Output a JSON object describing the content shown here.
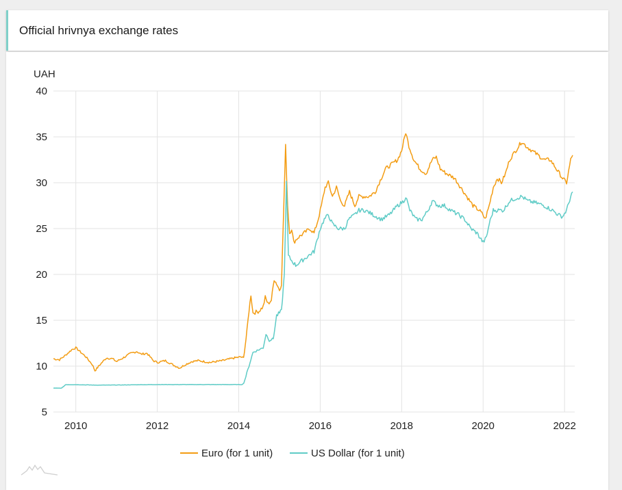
{
  "header": {
    "title": "Official hrivnya exchange rates"
  },
  "chart_data": {
    "type": "line",
    "title": "Official hrivnya exchange rates",
    "ylabel": "UAH",
    "xlabel": "",
    "xlim": [
      2009.45,
      2022.25
    ],
    "ylim": [
      5,
      40
    ],
    "x_ticks": [
      "2010",
      "2012",
      "2014",
      "2016",
      "2018",
      "2020",
      "2022"
    ],
    "y_ticks": [
      "40",
      "35",
      "30",
      "25",
      "20",
      "15",
      "10",
      "5"
    ],
    "grid": true,
    "legend_position": "bottom-center",
    "series": [
      {
        "name": "Euro (for 1 unit)",
        "color": "#f39c12",
        "points": [
          [
            2009.45,
            10.8
          ],
          [
            2009.6,
            10.7
          ],
          [
            2009.75,
            11.2
          ],
          [
            2009.9,
            11.8
          ],
          [
            2010.0,
            12.0
          ],
          [
            2010.1,
            11.6
          ],
          [
            2010.25,
            11.0
          ],
          [
            2010.4,
            10.2
          ],
          [
            2010.47,
            9.5
          ],
          [
            2010.6,
            10.2
          ],
          [
            2010.75,
            10.9
          ],
          [
            2010.9,
            10.8
          ],
          [
            2011.0,
            10.5
          ],
          [
            2011.2,
            11.0
          ],
          [
            2011.35,
            11.4
          ],
          [
            2011.5,
            11.6
          ],
          [
            2011.6,
            11.3
          ],
          [
            2011.75,
            11.4
          ],
          [
            2011.9,
            10.6
          ],
          [
            2012.0,
            10.4
          ],
          [
            2012.2,
            10.6
          ],
          [
            2012.4,
            10.1
          ],
          [
            2012.55,
            9.8
          ],
          [
            2012.7,
            10.2
          ],
          [
            2012.85,
            10.5
          ],
          [
            2013.0,
            10.6
          ],
          [
            2013.3,
            10.4
          ],
          [
            2013.6,
            10.6
          ],
          [
            2013.9,
            10.9
          ],
          [
            2014.05,
            11.0
          ],
          [
            2014.12,
            10.9
          ],
          [
            2014.18,
            13.0
          ],
          [
            2014.25,
            16.0
          ],
          [
            2014.3,
            17.8
          ],
          [
            2014.35,
            15.8
          ],
          [
            2014.5,
            16.0
          ],
          [
            2014.6,
            16.5
          ],
          [
            2014.65,
            17.5
          ],
          [
            2014.72,
            16.8
          ],
          [
            2014.8,
            17.2
          ],
          [
            2014.87,
            19.5
          ],
          [
            2014.93,
            19.0
          ],
          [
            2015.0,
            18.3
          ],
          [
            2015.05,
            19.0
          ],
          [
            2015.1,
            26.5
          ],
          [
            2015.15,
            34.0
          ],
          [
            2015.2,
            27.5
          ],
          [
            2015.25,
            24.5
          ],
          [
            2015.3,
            25.0
          ],
          [
            2015.35,
            23.5
          ],
          [
            2015.45,
            24.0
          ],
          [
            2015.6,
            24.5
          ],
          [
            2015.75,
            25.0
          ],
          [
            2015.85,
            24.5
          ],
          [
            2015.95,
            26.0
          ],
          [
            2016.03,
            27.5
          ],
          [
            2016.12,
            29.5
          ],
          [
            2016.2,
            30.0
          ],
          [
            2016.3,
            28.5
          ],
          [
            2016.4,
            29.5
          ],
          [
            2016.5,
            28.0
          ],
          [
            2016.6,
            27.5
          ],
          [
            2016.72,
            29.0
          ],
          [
            2016.85,
            27.5
          ],
          [
            2016.95,
            28.5
          ],
          [
            2017.05,
            28.5
          ],
          [
            2017.2,
            28.5
          ],
          [
            2017.35,
            29.0
          ],
          [
            2017.5,
            30.5
          ],
          [
            2017.6,
            31.5
          ],
          [
            2017.75,
            32.0
          ],
          [
            2017.9,
            32.5
          ],
          [
            2018.0,
            33.5
          ],
          [
            2018.05,
            34.5
          ],
          [
            2018.1,
            35.5
          ],
          [
            2018.18,
            34.0
          ],
          [
            2018.3,
            32.5
          ],
          [
            2018.45,
            31.5
          ],
          [
            2018.6,
            31.0
          ],
          [
            2018.75,
            32.5
          ],
          [
            2018.85,
            32.8
          ],
          [
            2018.95,
            31.5
          ],
          [
            2019.1,
            31.0
          ],
          [
            2019.3,
            30.5
          ],
          [
            2019.45,
            29.5
          ],
          [
            2019.6,
            28.5
          ],
          [
            2019.75,
            27.5
          ],
          [
            2019.9,
            27.0
          ],
          [
            2020.0,
            26.5
          ],
          [
            2020.05,
            26.0
          ],
          [
            2020.15,
            27.5
          ],
          [
            2020.25,
            29.5
          ],
          [
            2020.35,
            30.5
          ],
          [
            2020.45,
            30.0
          ],
          [
            2020.55,
            31.0
          ],
          [
            2020.65,
            32.5
          ],
          [
            2020.8,
            33.5
          ],
          [
            2020.95,
            34.5
          ],
          [
            2021.05,
            34.0
          ],
          [
            2021.2,
            33.5
          ],
          [
            2021.35,
            33.0
          ],
          [
            2021.5,
            32.5
          ],
          [
            2021.65,
            32.5
          ],
          [
            2021.8,
            31.5
          ],
          [
            2021.95,
            30.5
          ],
          [
            2022.05,
            30.0
          ],
          [
            2022.15,
            32.5
          ],
          [
            2022.2,
            33.0
          ]
        ]
      },
      {
        "name": "US Dollar (for 1 unit)",
        "color": "#5ecbc6",
        "points": [
          [
            2009.45,
            7.6
          ],
          [
            2009.65,
            7.6
          ],
          [
            2009.75,
            7.98
          ],
          [
            2010.0,
            7.98
          ],
          [
            2010.5,
            7.93
          ],
          [
            2011.0,
            7.94
          ],
          [
            2011.5,
            7.97
          ],
          [
            2012.0,
            7.99
          ],
          [
            2012.5,
            7.99
          ],
          [
            2013.0,
            7.99
          ],
          [
            2013.5,
            7.99
          ],
          [
            2014.0,
            7.99
          ],
          [
            2014.1,
            7.99
          ],
          [
            2014.15,
            8.5
          ],
          [
            2014.25,
            10.0
          ],
          [
            2014.35,
            11.5
          ],
          [
            2014.5,
            11.8
          ],
          [
            2014.6,
            12.0
          ],
          [
            2014.67,
            13.5
          ],
          [
            2014.75,
            12.8
          ],
          [
            2014.85,
            13.0
          ],
          [
            2014.93,
            15.5
          ],
          [
            2015.05,
            16.0
          ],
          [
            2015.12,
            20.0
          ],
          [
            2015.17,
            30.0
          ],
          [
            2015.22,
            22.0
          ],
          [
            2015.3,
            21.5
          ],
          [
            2015.4,
            21.0
          ],
          [
            2015.55,
            21.5
          ],
          [
            2015.7,
            22.0
          ],
          [
            2015.85,
            22.5
          ],
          [
            2016.0,
            25.0
          ],
          [
            2016.1,
            26.0
          ],
          [
            2016.2,
            26.5
          ],
          [
            2016.3,
            25.5
          ],
          [
            2016.45,
            25.0
          ],
          [
            2016.6,
            25.0
          ],
          [
            2016.7,
            26.0
          ],
          [
            2016.85,
            26.5
          ],
          [
            2016.95,
            27.0
          ],
          [
            2017.1,
            27.0
          ],
          [
            2017.3,
            26.5
          ],
          [
            2017.5,
            26.0
          ],
          [
            2017.7,
            26.5
          ],
          [
            2017.9,
            27.5
          ],
          [
            2018.05,
            28.0
          ],
          [
            2018.1,
            28.5
          ],
          [
            2018.2,
            27.0
          ],
          [
            2018.35,
            26.0
          ],
          [
            2018.5,
            26.0
          ],
          [
            2018.65,
            27.0
          ],
          [
            2018.75,
            28.0
          ],
          [
            2018.9,
            27.5
          ],
          [
            2019.05,
            27.5
          ],
          [
            2019.2,
            27.0
          ],
          [
            2019.4,
            26.5
          ],
          [
            2019.55,
            26.0
          ],
          [
            2019.7,
            25.0
          ],
          [
            2019.85,
            24.5
          ],
          [
            2020.0,
            23.5
          ],
          [
            2020.08,
            24.0
          ],
          [
            2020.15,
            25.5
          ],
          [
            2020.25,
            27.0
          ],
          [
            2020.35,
            27.0
          ],
          [
            2020.5,
            27.0
          ],
          [
            2020.65,
            28.0
          ],
          [
            2020.8,
            28.3
          ],
          [
            2020.95,
            28.5
          ],
          [
            2021.1,
            28.0
          ],
          [
            2021.3,
            27.8
          ],
          [
            2021.5,
            27.5
          ],
          [
            2021.7,
            27.0
          ],
          [
            2021.85,
            26.5
          ],
          [
            2021.95,
            26.3
          ],
          [
            2022.05,
            27.0
          ],
          [
            2022.15,
            28.5
          ],
          [
            2022.2,
            29.0
          ]
        ]
      }
    ]
  }
}
